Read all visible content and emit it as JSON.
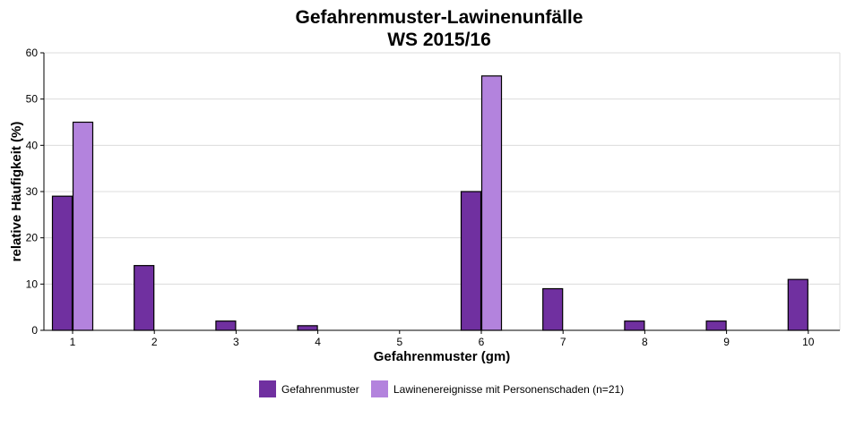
{
  "chart_data": {
    "type": "bar",
    "title_line1": "Gefahrenmuster-Lawinenunfälle",
    "title_line2": "WS 2015/16",
    "xlabel": "Gefahrenmuster (gm)",
    "ylabel": "relative Häufigkeit (%)",
    "categories": [
      "1",
      "2",
      "3",
      "4",
      "5",
      "6",
      "7",
      "8",
      "9",
      "10"
    ],
    "ylim": [
      0,
      60
    ],
    "yticks": [
      0,
      10,
      20,
      30,
      40,
      50,
      60
    ],
    "grid": true,
    "legend_position": "bottom",
    "series": [
      {
        "name": "Gefahrenmuster",
        "color": "#7030a0",
        "values": [
          29,
          14,
          2,
          1,
          0,
          30,
          9,
          2,
          2,
          11
        ]
      },
      {
        "name": "Lawinenereignisse mit Personenschaden (n=21)",
        "color": "#b383dd",
        "values": [
          45,
          0,
          0,
          0,
          0,
          55,
          0,
          0,
          0,
          0
        ]
      }
    ]
  }
}
